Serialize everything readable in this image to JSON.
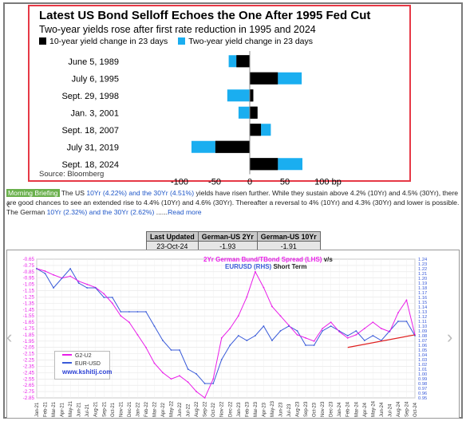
{
  "bond": {
    "title": "Latest US Bond Selloff Echoes the One After 1995 Fed Cut",
    "subtitle": "Two-year yields rose after first rate reduction in 1995 and 2024",
    "legend_10y": "10-year yield change in 23 days",
    "legend_2y": "Two-year yield change in 23 days",
    "source": "Source: Bloomberg",
    "colors": {
      "ten_year": "#000000",
      "two_year": "#1aaef0"
    }
  },
  "chart_data": [
    {
      "type": "bar",
      "orientation": "horizontal",
      "title": "Latest US Bond Selloff Echoes the One After 1995 Fed Cut",
      "subtitle": "Two-year yields rose after first rate reduction in 1995 and 2024",
      "categories": [
        "June 5, 1989",
        "July 6, 1995",
        "Sept. 29, 1998",
        "Jan. 3, 2001",
        "Sept. 18, 2007",
        "July 31, 2019",
        "Sept. 18, 2024"
      ],
      "series": [
        {
          "name": "10-year yield change in 23 days",
          "values": [
            -19,
            40,
            5,
            11,
            16,
            -49,
            40
          ]
        },
        {
          "name": "Two-year yield change in 23 days",
          "values": [
            -30,
            74,
            -32,
            -16,
            30,
            -83,
            75
          ]
        }
      ],
      "xlim": [
        -100,
        100
      ],
      "xticks": [
        "-100",
        "-50",
        "0",
        "50",
        "100 bp"
      ],
      "legend": "top"
    },
    {
      "type": "line",
      "title": "2Yr German Bund/TBond Spread (LHS) v/s EURUSD (RHS) Short Term",
      "x": [
        "Jan-21",
        "Feb-21",
        "Mar-21",
        "Apr-21",
        "May-21",
        "Jun-21",
        "Jul-21",
        "Aug-21",
        "Sep-21",
        "Oct-21",
        "Nov-21",
        "Dec-21",
        "Jan-22",
        "Feb-22",
        "Mar-22",
        "Apr-22",
        "May-22",
        "Jun-22",
        "Jul-22",
        "Aug-22",
        "Sep-22",
        "Oct-22",
        "Nov-22",
        "Dec-22",
        "Jan-23",
        "Feb-23",
        "Mar-23",
        "Apr-23",
        "May-23",
        "Jun-23",
        "Jul-23",
        "Aug-23",
        "Sep-23",
        "Oct-23",
        "Nov-23",
        "Dec-23",
        "Jan-24",
        "Feb-24",
        "Mar-24",
        "Apr-24",
        "May-24",
        "Jun-24",
        "Jul-24",
        "Aug-24",
        "Sep-24",
        "Oct-24"
      ],
      "series": [
        {
          "name": "G2-U2",
          "axis": "left",
          "values": [
            -0.8,
            -0.84,
            -0.9,
            -0.95,
            -0.92,
            -1.0,
            -1.05,
            -1.1,
            -1.2,
            -1.35,
            -1.55,
            -1.65,
            -1.85,
            -2.05,
            -2.3,
            -2.45,
            -2.55,
            -2.5,
            -2.6,
            -2.75,
            -2.85,
            -2.55,
            -1.9,
            -1.75,
            -1.55,
            -1.25,
            -0.85,
            -1.1,
            -1.4,
            -1.55,
            -1.7,
            -1.85,
            -1.9,
            -1.95,
            -1.75,
            -1.65,
            -1.8,
            -1.9,
            -1.85,
            -1.75,
            -1.65,
            -1.75,
            -1.8,
            -1.5,
            -1.3,
            -1.85
          ]
        },
        {
          "name": "EUR-USD",
          "axis": "right",
          "values": [
            1.22,
            1.21,
            1.18,
            1.2,
            1.22,
            1.19,
            1.18,
            1.18,
            1.16,
            1.16,
            1.13,
            1.13,
            1.13,
            1.13,
            1.1,
            1.07,
            1.05,
            1.05,
            1.01,
            1.0,
            0.98,
            0.98,
            1.03,
            1.06,
            1.08,
            1.07,
            1.08,
            1.1,
            1.07,
            1.09,
            1.1,
            1.09,
            1.06,
            1.06,
            1.09,
            1.1,
            1.09,
            1.08,
            1.09,
            1.07,
            1.08,
            1.07,
            1.09,
            1.11,
            1.11,
            1.08
          ]
        }
      ],
      "ylim_left": [
        -2.85,
        -0.65
      ],
      "ylim_right": [
        0.95,
        1.24
      ],
      "yticks_left": [
        "-0.65",
        "-0.75",
        "-0.85",
        "-0.95",
        "-1.05",
        "-1.15",
        "-1.25",
        "-1.35",
        "-1.45",
        "-1.55",
        "-1.65",
        "-1.75",
        "-1.85",
        "-1.95",
        "-2.05",
        "-2.15",
        "-2.25",
        "-2.35",
        "-2.45",
        "-2.55",
        "-2.65",
        "-2.75",
        "-2.85"
      ],
      "yticks_right": [
        "1.24",
        "1.23",
        "1.22",
        "1.21",
        "1.20",
        "1.19",
        "1.18",
        "1.17",
        "1.16",
        "1.15",
        "1.14",
        "1.13",
        "1.12",
        "1.11",
        "1.10",
        "1.09",
        "1.08",
        "1.07",
        "1.06",
        "1.05",
        "1.04",
        "1.03",
        "1.02",
        "1.01",
        "1.00",
        "0.99",
        "0.98",
        "0.97",
        "0.96",
        "0.95"
      ],
      "annotation": "www.kshitij.com",
      "colors": {
        "spread": "#e91ee8",
        "eurusd": "#3a5bd9",
        "trendline": "#e02020"
      }
    }
  ],
  "briefing": {
    "tag": "Morning Briefing",
    "t1": " The US ",
    "b1": "10Yr (4.22%) and the 30Yr (4.51%)",
    "t2": " yields have risen further. While they sustain above 4.2% (10Yr) and 4.5% (30Yr), there are good chances to see an extended rise to 4.4% (10Yr) and 4.6% (30Yr). Thereafter a reversal to 4% (10Yr) and 4.3% (30Yr) and lower is possible.",
    "t3": "The German ",
    "b2": "10Yr (2.32%) and the 30Yr (2.62%)",
    "t4": " ......",
    "read_more": "Read more"
  },
  "table": {
    "headers": [
      "Last Updated",
      "German-US 2Yr",
      "German-US 10Yr"
    ],
    "row": [
      "23-Oct-24",
      "-1.93",
      "-1.91"
    ]
  },
  "lower_chart": {
    "title_pink": "2Yr German Bund/TBond Spread (LHS)",
    "title_vs": " v/s",
    "title_blue": "EURUSD (RHS)",
    "title_short": " Short Term",
    "legend_g2": "G2-U2",
    "legend_eur": "EUR-USD",
    "site": "www.kshitij.com"
  },
  "nav": {
    "left_arrow": "‹",
    "right_arrow": "›",
    "edge_mark": "‹"
  }
}
